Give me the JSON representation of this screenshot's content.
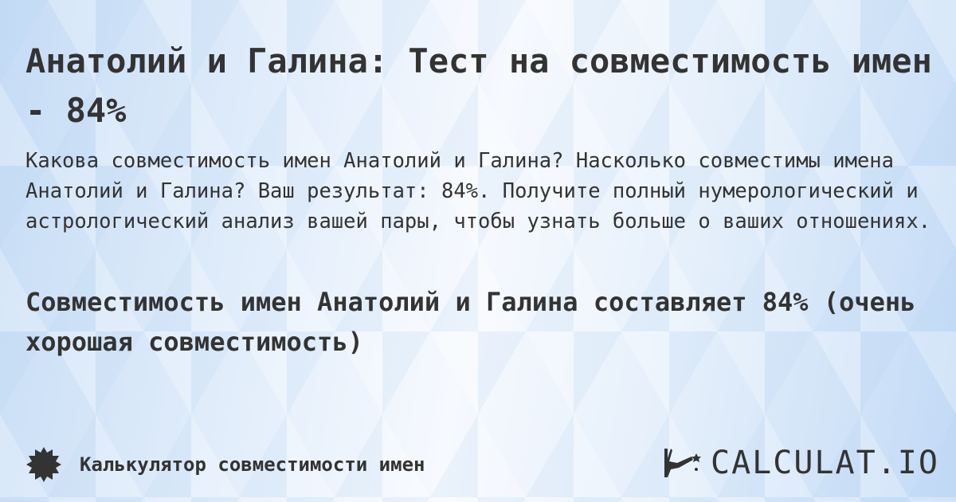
{
  "title": "Анатолий и Галина: Тест на совместимость имен - 84%",
  "description": "Какова совместимость имен Анатолий и Галина? Насколько совместимы имена Анатолий и Галина? Ваш результат: 84%. Получите полный нумерологический и астрологический анализ вашей пары, чтобы узнать больше о ваших отношениях.",
  "result": "Совместимость имен Анатолий и Галина составляет 84% (очень хорошая совместимость)",
  "footer": {
    "calculator_label": "Калькулятор совместимости имен",
    "badge_icon": "badge-icon",
    "logo_text": "CALCULAT.IO"
  }
}
